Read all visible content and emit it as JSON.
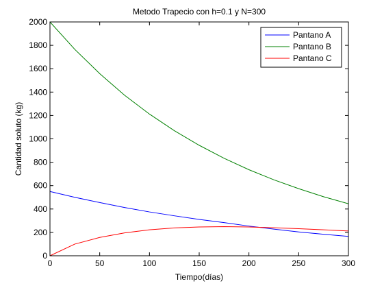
{
  "chart_data": {
    "type": "line",
    "title": "Metodo Trapecio con h=0.1 y N=300",
    "xlabel": "Tiempo(días)",
    "ylabel": "Cantidad soluto (kg)",
    "xlim": [
      0,
      300
    ],
    "ylim": [
      0,
      2000
    ],
    "xticks": [
      0,
      50,
      100,
      150,
      200,
      250,
      300
    ],
    "yticks": [
      0,
      200,
      400,
      600,
      800,
      1000,
      1200,
      1400,
      1600,
      1800,
      2000
    ],
    "grid": false,
    "legend_position": "top-right",
    "x": [
      0,
      25,
      50,
      75,
      100,
      125,
      150,
      175,
      200,
      225,
      250,
      275,
      300
    ],
    "series": [
      {
        "name": "Pantano A",
        "color": "#0000ff",
        "values": [
          550,
          500,
          455,
          413,
          375,
          342,
          311,
          284,
          254,
          228,
          204,
          184,
          166
        ]
      },
      {
        "name": "Pantano B",
        "color": "#008000",
        "values": [
          2000,
          1765,
          1558,
          1373,
          1212,
          1070,
          945,
          834,
          736,
          650,
          574,
          505,
          445
        ]
      },
      {
        "name": "Pantano C",
        "color": "#ff0000",
        "values": [
          0,
          100,
          157,
          196,
          222,
          238,
          246,
          249,
          246,
          240,
          232,
          222,
          212
        ]
      }
    ]
  }
}
